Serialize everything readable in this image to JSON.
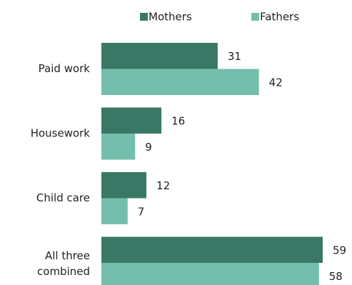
{
  "chart_data": {
    "type": "bar",
    "orientation": "horizontal",
    "categories": [
      "Paid work",
      "Housework",
      "Child care",
      "All three combined"
    ],
    "series": [
      {
        "name": "Mothers",
        "color": "#3a7866",
        "values": [
          31,
          16,
          12,
          59
        ]
      },
      {
        "name": "Fathers",
        "color": "#74bfac",
        "values": [
          42,
          9,
          7,
          58
        ]
      }
    ],
    "legend": "top"
  }
}
